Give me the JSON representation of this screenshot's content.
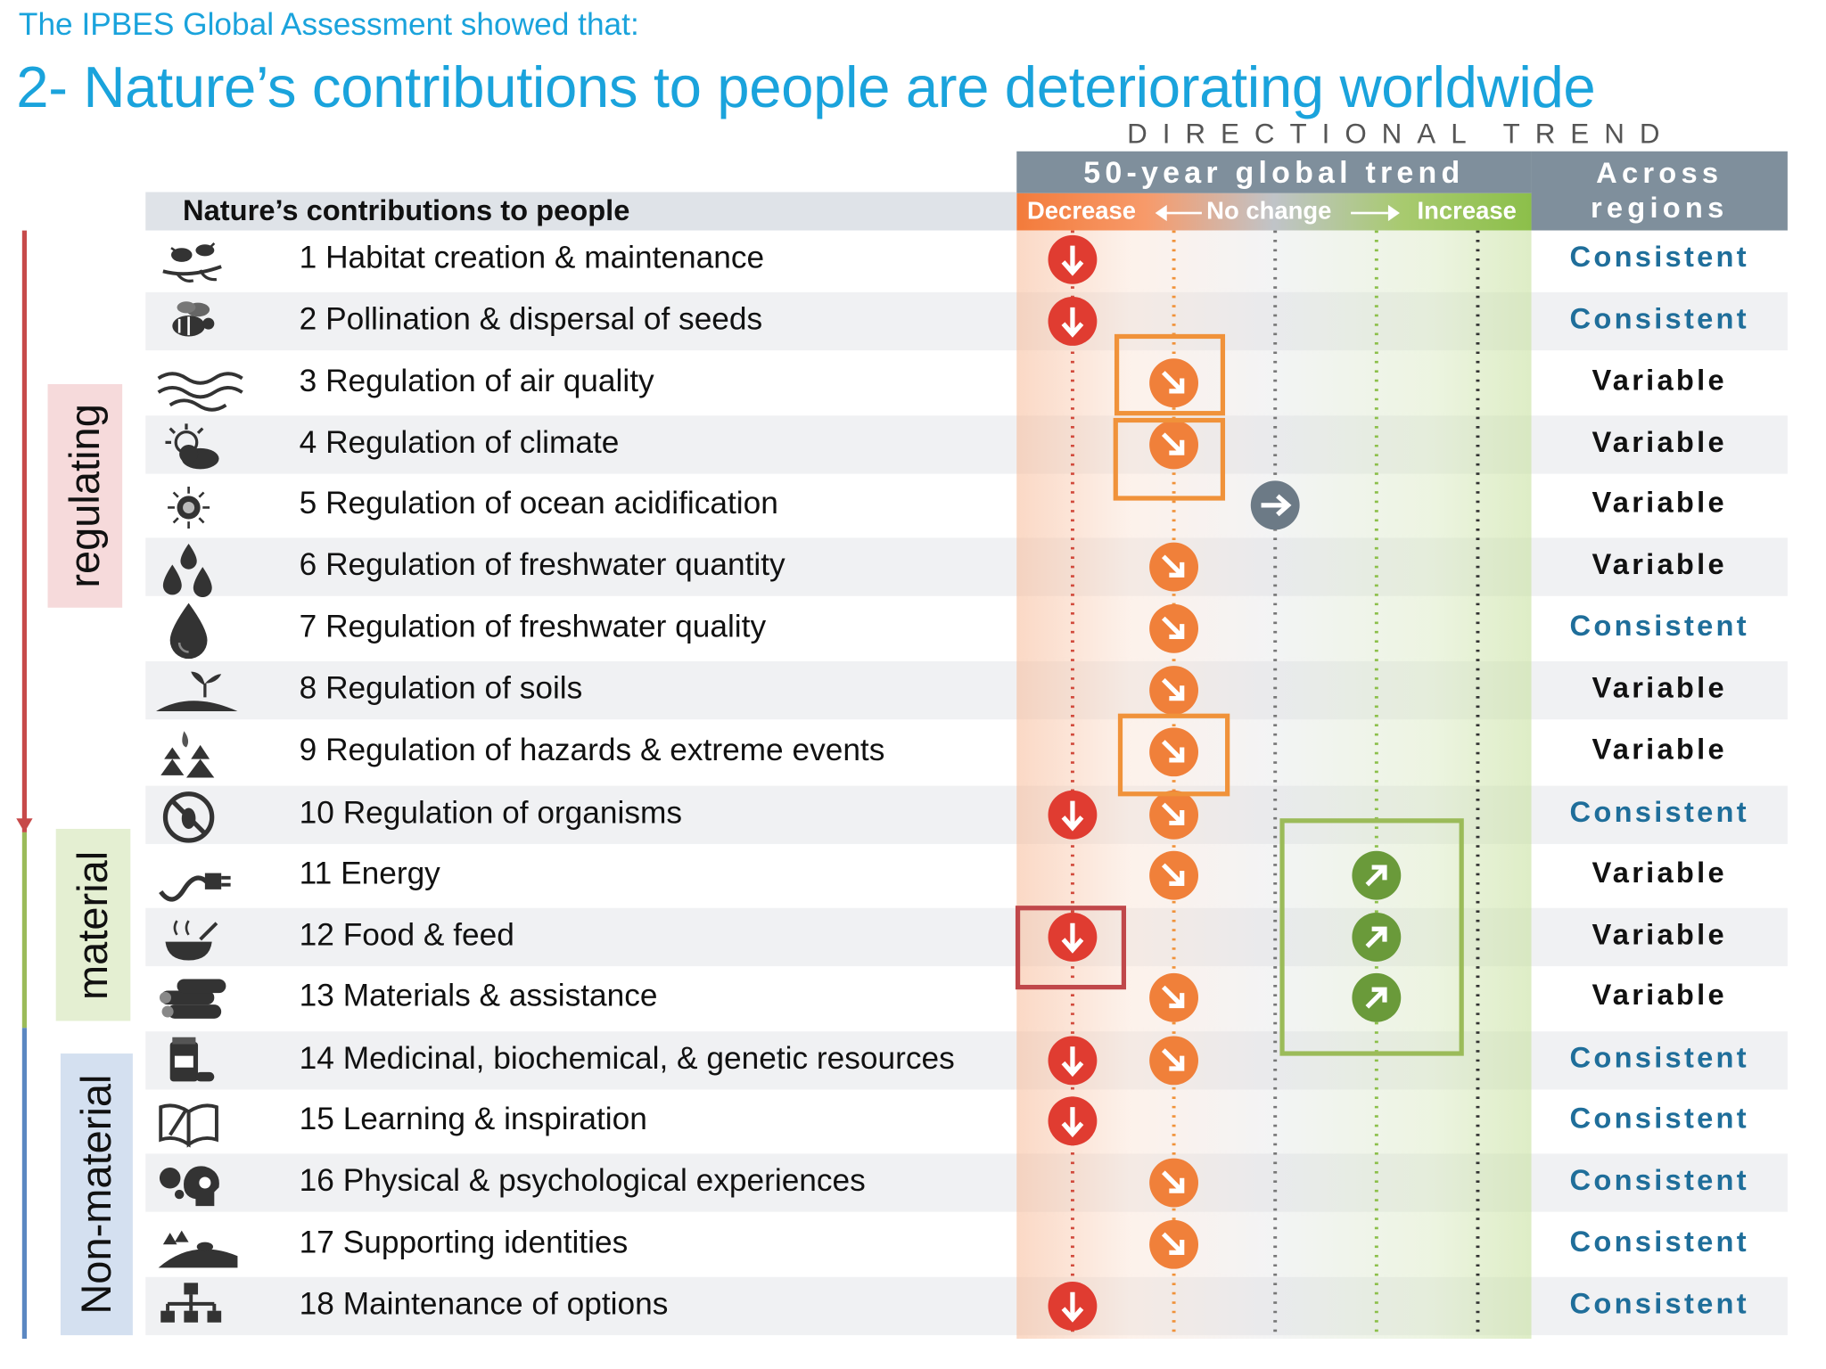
{
  "header": {
    "subtitle": "The IPBES Global Assessment showed that:",
    "title": "2- Nature’s contributions to people are deteriorating worldwide",
    "directional_trend": "DIRECTIONAL TREND",
    "fifty_year": "50-year global trend",
    "decrease": "Decrease",
    "no_change": "No change",
    "increase": "Increase",
    "across_regions": "Across regions",
    "ncp_column": "Nature’s contributions to people"
  },
  "categories": [
    {
      "label": "regulating",
      "color": "#c74a4a",
      "bg": "#f6dadb"
    },
    {
      "label": "material",
      "color": "#9bbb59",
      "bg": "#e4efd2"
    },
    {
      "label": "Non-material",
      "color": "#5b87c2",
      "bg": "#d4e0f0"
    }
  ],
  "colors": {
    "decrease": "#e03c31",
    "decrease_partial": "#f0803a",
    "no_change": "#6c7a86",
    "increase": "#6a9a3a",
    "consistent_text": "#1f6e9a",
    "variable_text": "#111111",
    "highlight_orange": "#f0923a",
    "highlight_red": "#c0474a",
    "highlight_green": "#9bbb59"
  },
  "rows": [
    {
      "label": "1 Habitat creation & maintenance",
      "icon": "birds-on-branch-icon",
      "trends": [
        "decrease"
      ],
      "regions": "Consistent"
    },
    {
      "label": "2 Pollination & dispersal of seeds",
      "icon": "bee-icon",
      "trends": [
        "decrease"
      ],
      "regions": "Consistent"
    },
    {
      "label": "3 Regulation of air quality",
      "icon": "air-waves-icon",
      "trends": [
        "decrease_partial"
      ],
      "regions": "Variable"
    },
    {
      "label": "4 Regulation of climate",
      "icon": "sun-cloud-icon",
      "trends": [
        "decrease_partial"
      ],
      "regions": "Variable"
    },
    {
      "label": "5 Regulation of ocean acidification",
      "icon": "plankton-icon",
      "trends": [
        "no_change"
      ],
      "regions": "Variable"
    },
    {
      "label": "6 Regulation of freshwater quantity",
      "icon": "water-drops-icon",
      "trends": [
        "decrease_partial"
      ],
      "regions": "Variable"
    },
    {
      "label": "7 Regulation of freshwater quality",
      "icon": "water-drop-icon",
      "trends": [
        "decrease_partial"
      ],
      "regions": "Consistent"
    },
    {
      "label": "8 Regulation of soils",
      "icon": "soil-seedling-icon",
      "trends": [
        "decrease_partial"
      ],
      "regions": "Variable"
    },
    {
      "label": "9 Regulation of hazards & extreme events",
      "icon": "forest-fire-icon",
      "trends": [
        "decrease_partial"
      ],
      "regions": "Variable"
    },
    {
      "label": "10 Regulation of organisms",
      "icon": "no-pest-icon",
      "trends": [
        "decrease",
        "decrease_partial"
      ],
      "regions": "Consistent"
    },
    {
      "label": "11 Energy",
      "icon": "power-plug-icon",
      "trends": [
        "decrease_partial",
        "increase"
      ],
      "regions": "Variable"
    },
    {
      "label": "12 Food & feed",
      "icon": "food-bowl-icon",
      "trends": [
        "decrease",
        "increase"
      ],
      "regions": "Variable"
    },
    {
      "label": "13 Materials & assistance",
      "icon": "logs-icon",
      "trends": [
        "decrease_partial",
        "increase"
      ],
      "regions": "Variable"
    },
    {
      "label": "14 Medicinal, biochemical, & genetic resources",
      "icon": "medicine-icon",
      "trends": [
        "decrease",
        "decrease_partial"
      ],
      "regions": "Consistent"
    },
    {
      "label": "15 Learning & inspiration",
      "icon": "open-book-icon",
      "trends": [
        "decrease"
      ],
      "regions": "Consistent"
    },
    {
      "label": "16 Physical & psychological experiences",
      "icon": "head-thought-icon",
      "trends": [
        "decrease_partial"
      ],
      "regions": "Consistent"
    },
    {
      "label": "17 Supporting identities",
      "icon": "landscape-icon",
      "trends": [
        "decrease_partial"
      ],
      "regions": "Consistent"
    },
    {
      "label": "18 Maintenance of options",
      "icon": "hierarchy-icon",
      "trends": [
        "decrease"
      ],
      "regions": "Consistent"
    }
  ]
}
